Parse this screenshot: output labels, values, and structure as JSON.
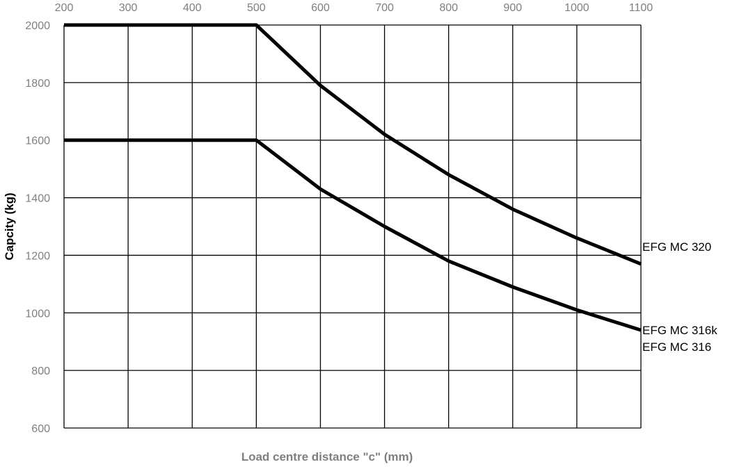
{
  "chart_data": {
    "type": "line",
    "title": "",
    "xlabel": "Load centre distance \"c\" (mm)",
    "ylabel": "Capcity (kg)",
    "xlim": [
      200,
      1100
    ],
    "ylim": [
      600,
      2000
    ],
    "x_ticks": [
      200,
      300,
      400,
      500,
      600,
      700,
      800,
      900,
      1000,
      1100
    ],
    "y_ticks": [
      600,
      800,
      1000,
      1200,
      1400,
      1600,
      1800,
      2000
    ],
    "x_axis_position": "top",
    "grid": true,
    "legend": "none",
    "series_label_position": "right end of lines",
    "series_labels": [
      {
        "text": "EFG MC 320",
        "at_y": 1230
      },
      {
        "text": "EFG MC 316k",
        "at_y": 940
      },
      {
        "text": "EFG MC 316",
        "at_y": 882
      }
    ],
    "series": [
      {
        "x": [
          200,
          300,
          400,
          500,
          600,
          700,
          800,
          900,
          1000,
          1100
        ],
        "values": [
          2000,
          2000,
          2000,
          2000,
          1790,
          1620,
          1480,
          1360,
          1260,
          1170
        ]
      },
      {
        "x": [
          200,
          300,
          400,
          500,
          600,
          700,
          800,
          900,
          1000,
          1100
        ],
        "values": [
          1600,
          1600,
          1600,
          1600,
          1430,
          1300,
          1180,
          1090,
          1010,
          940
        ]
      }
    ],
    "colors": {
      "line": "#000000",
      "grid": "#000000",
      "tick_label": "#7f7f7f",
      "xlabel": "#7f7f7f",
      "ylabel": "#000000"
    }
  }
}
